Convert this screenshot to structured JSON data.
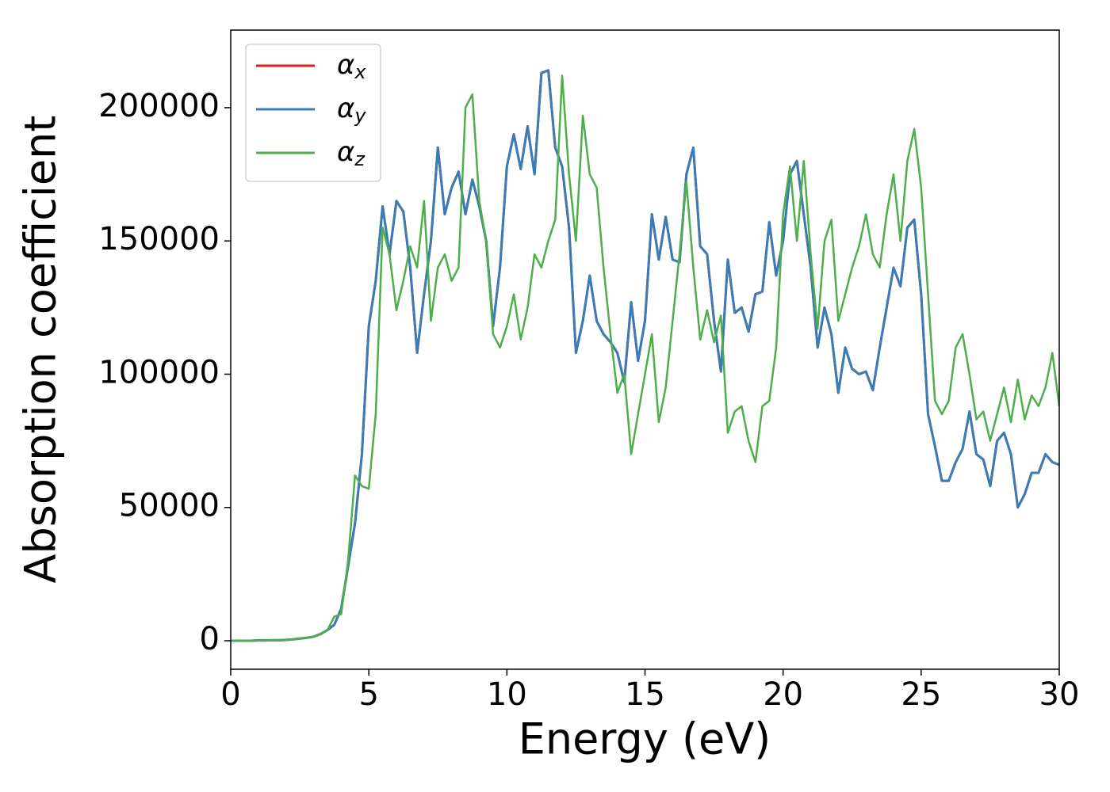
{
  "chart_data": {
    "type": "line",
    "xlabel": "Energy (eV)",
    "ylabel": "Absorption coefficient",
    "x": [
      0,
      0.25,
      0.5,
      0.75,
      1,
      1.25,
      1.5,
      1.75,
      2,
      2.25,
      2.5,
      2.75,
      3,
      3.25,
      3.5,
      3.75,
      4,
      4.25,
      4.5,
      4.75,
      5,
      5.25,
      5.5,
      5.75,
      6,
      6.25,
      6.5,
      6.75,
      7,
      7.25,
      7.5,
      7.75,
      8,
      8.25,
      8.5,
      8.75,
      9,
      9.25,
      9.5,
      9.75,
      10,
      10.25,
      10.5,
      10.75,
      11,
      11.25,
      11.5,
      11.75,
      12,
      12.25,
      12.5,
      12.75,
      13,
      13.25,
      13.5,
      13.75,
      14,
      14.25,
      14.5,
      14.75,
      15,
      15.25,
      15.5,
      15.75,
      16,
      16.25,
      16.5,
      16.75,
      17,
      17.25,
      17.5,
      17.75,
      18,
      18.25,
      18.5,
      18.75,
      19,
      19.25,
      19.5,
      19.75,
      20,
      20.25,
      20.5,
      20.75,
      21,
      21.25,
      21.5,
      21.75,
      22,
      22.25,
      22.5,
      22.75,
      23,
      23.25,
      23.5,
      23.75,
      24,
      24.25,
      24.5,
      24.75,
      25,
      25.25,
      25.5,
      25.75,
      26,
      26.25,
      26.5,
      26.75,
      27,
      27.25,
      27.5,
      27.75,
      28,
      28.25,
      28.5,
      28.75,
      29,
      29.25,
      29.5,
      29.75,
      30
    ],
    "series": [
      {
        "name": "αx",
        "color": "#e41a1c",
        "values": [
          0,
          0,
          0,
          0,
          100,
          100,
          200,
          200,
          300,
          500,
          800,
          1100,
          1500,
          2500,
          4000,
          6000,
          12000,
          28000,
          44000,
          70000,
          118000,
          135000,
          163000,
          145000,
          165000,
          161000,
          140000,
          108000,
          130000,
          150000,
          185000,
          160000,
          170000,
          176000,
          160000,
          173000,
          163000,
          150000,
          118000,
          140000,
          178000,
          190000,
          177000,
          193000,
          175000,
          213000,
          214000,
          185000,
          178000,
          155000,
          108000,
          120000,
          137000,
          120000,
          115000,
          112000,
          108000,
          97000,
          127000,
          105000,
          120000,
          160000,
          143000,
          159000,
          143000,
          142000,
          175000,
          185000,
          148000,
          145000,
          120000,
          101000,
          143000,
          123000,
          125000,
          116000,
          130000,
          131000,
          157000,
          137000,
          150000,
          175000,
          180000,
          160000,
          140000,
          110000,
          125000,
          115000,
          93000,
          110000,
          102000,
          100000,
          101000,
          94000,
          110000,
          125000,
          140000,
          133000,
          155000,
          158000,
          130000,
          85000,
          73000,
          60000,
          60000,
          67000,
          72000,
          86000,
          70000,
          68000,
          58000,
          75000,
          78000,
          70000,
          50000,
          55000,
          63000,
          63000,
          70000,
          67000,
          66000
        ]
      },
      {
        "name": "αy",
        "color": "#377eb8",
        "values": [
          0,
          0,
          0,
          0,
          100,
          100,
          200,
          200,
          300,
          500,
          800,
          1100,
          1500,
          2500,
          4000,
          6000,
          12000,
          28000,
          44000,
          70000,
          118000,
          135000,
          163000,
          145000,
          165000,
          161000,
          140000,
          108000,
          130000,
          150000,
          185000,
          160000,
          170000,
          176000,
          160000,
          173000,
          163000,
          150000,
          118000,
          140000,
          178000,
          190000,
          177000,
          193000,
          175000,
          213000,
          214000,
          185000,
          178000,
          155000,
          108000,
          120000,
          137000,
          120000,
          115000,
          112000,
          108000,
          97000,
          127000,
          105000,
          120000,
          160000,
          143000,
          159000,
          143000,
          142000,
          175000,
          185000,
          148000,
          145000,
          120000,
          101000,
          143000,
          123000,
          125000,
          116000,
          130000,
          131000,
          157000,
          137000,
          150000,
          175000,
          180000,
          160000,
          140000,
          110000,
          125000,
          115000,
          93000,
          110000,
          102000,
          100000,
          101000,
          94000,
          110000,
          125000,
          140000,
          133000,
          155000,
          158000,
          130000,
          85000,
          73000,
          60000,
          60000,
          67000,
          72000,
          86000,
          70000,
          68000,
          58000,
          75000,
          78000,
          70000,
          50000,
          55000,
          63000,
          63000,
          70000,
          67000,
          66000
        ]
      },
      {
        "name": "αz",
        "color": "#4daf4a",
        "values": [
          0,
          0,
          0,
          0,
          100,
          100,
          200,
          200,
          300,
          500,
          800,
          1100,
          1500,
          2500,
          4000,
          9000,
          10000,
          30000,
          62000,
          58000,
          57000,
          85000,
          155000,
          145000,
          124000,
          135000,
          148000,
          140000,
          165000,
          120000,
          140000,
          145000,
          135000,
          140000,
          200000,
          205000,
          165000,
          150000,
          115000,
          110000,
          118000,
          130000,
          113000,
          125000,
          145000,
          140000,
          150000,
          158000,
          212000,
          175000,
          150000,
          197000,
          175000,
          170000,
          140000,
          115000,
          93000,
          100000,
          70000,
          85000,
          100000,
          115000,
          82000,
          95000,
          120000,
          145000,
          172000,
          140000,
          113000,
          124000,
          112000,
          122000,
          78000,
          86000,
          88000,
          75000,
          67000,
          88000,
          90000,
          110000,
          160000,
          178000,
          150000,
          180000,
          145000,
          117000,
          150000,
          158000,
          120000,
          130000,
          140000,
          148000,
          160000,
          145000,
          140000,
          160000,
          175000,
          150000,
          180000,
          192000,
          170000,
          130000,
          90000,
          85000,
          90000,
          110000,
          115000,
          100000,
          83000,
          86000,
          75000,
          85000,
          95000,
          82000,
          98000,
          83000,
          92000,
          88000,
          95000,
          108000,
          88000
        ]
      }
    ],
    "xlim": [
      0,
      30
    ],
    "xticks": [
      0,
      5,
      10,
      15,
      20,
      25,
      30
    ],
    "ylim": [
      -10700,
      229100
    ],
    "yticks": [
      0,
      50000,
      100000,
      150000,
      200000
    ],
    "legend": "upper left",
    "grid": false
  }
}
